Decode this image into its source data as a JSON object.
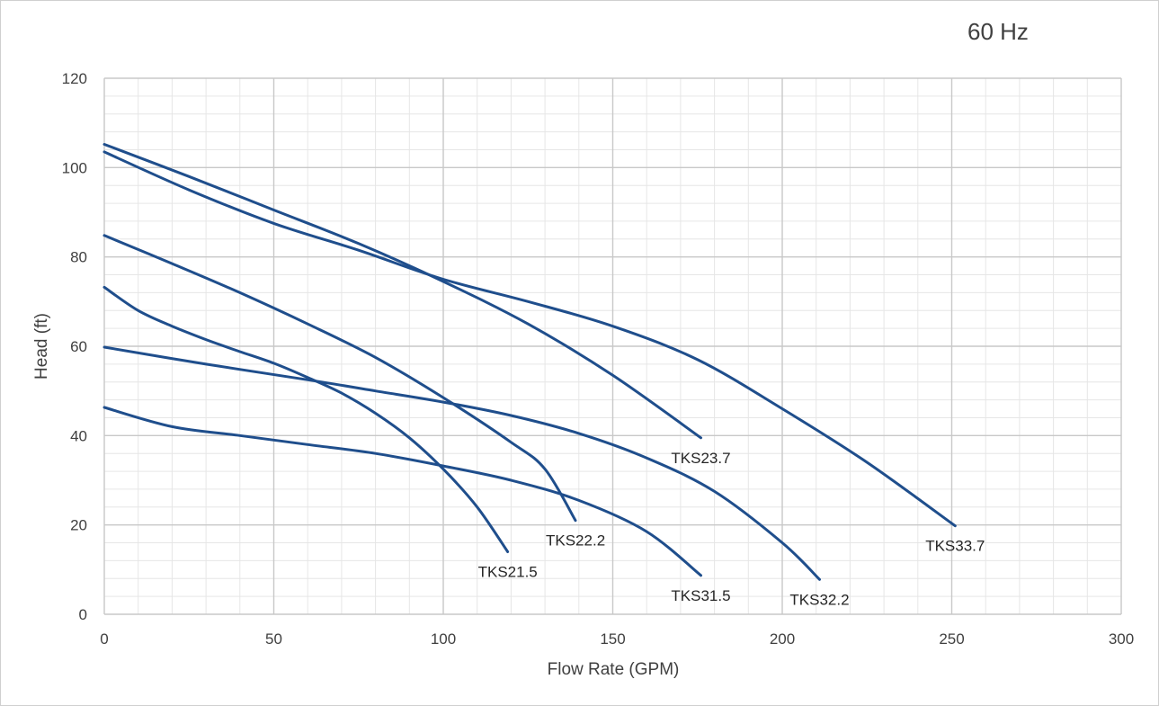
{
  "chart_data": {
    "type": "line",
    "annotation": "60 Hz",
    "xlabel": "Flow Rate (GPM)",
    "ylabel": "Head (ft)",
    "xlim": [
      0,
      300
    ],
    "ylim": [
      0,
      120
    ],
    "x_ticks": [
      0,
      50,
      100,
      150,
      200,
      250,
      300
    ],
    "y_ticks": [
      0,
      20,
      40,
      60,
      80,
      100,
      120
    ],
    "x_minor_step": 10,
    "y_minor_step": 4,
    "grid": true,
    "line_color": "#1f4e8c",
    "series": [
      {
        "name": "TKS21.5",
        "points": [
          [
            0,
            73.2
          ],
          [
            10,
            68
          ],
          [
            20,
            64.5
          ],
          [
            30,
            61.5
          ],
          [
            40,
            58.8
          ],
          [
            50,
            56.2
          ],
          [
            60,
            53
          ],
          [
            70,
            49.5
          ],
          [
            80,
            45
          ],
          [
            90,
            39.5
          ],
          [
            100,
            32.5
          ],
          [
            110,
            24
          ],
          [
            119,
            14
          ]
        ]
      },
      {
        "name": "TKS22.2",
        "points": [
          [
            0,
            84.8
          ],
          [
            20,
            78.5
          ],
          [
            40,
            72
          ],
          [
            60,
            65
          ],
          [
            80,
            57.5
          ],
          [
            100,
            48.5
          ],
          [
            120,
            38.5
          ],
          [
            130,
            32.5
          ],
          [
            139,
            21
          ]
        ]
      },
      {
        "name": "TKS23.7",
        "points": [
          [
            0,
            105.2
          ],
          [
            25,
            98
          ],
          [
            50,
            90.5
          ],
          [
            75,
            83
          ],
          [
            100,
            74.5
          ],
          [
            125,
            65
          ],
          [
            150,
            53.5
          ],
          [
            176,
            39.5
          ]
        ]
      },
      {
        "name": "TKS31.5",
        "points": [
          [
            0,
            46.3
          ],
          [
            20,
            42
          ],
          [
            40,
            40
          ],
          [
            60,
            38
          ],
          [
            80,
            36
          ],
          [
            100,
            33.2
          ],
          [
            120,
            30
          ],
          [
            140,
            25.5
          ],
          [
            160,
            18.5
          ],
          [
            176,
            8.7
          ]
        ]
      },
      {
        "name": "TKS32.2",
        "points": [
          [
            0,
            59.8
          ],
          [
            30,
            56
          ],
          [
            60,
            52.5
          ],
          [
            80,
            50
          ],
          [
            100,
            47.5
          ],
          [
            120,
            44.5
          ],
          [
            140,
            40.5
          ],
          [
            160,
            35
          ],
          [
            180,
            27.5
          ],
          [
            200,
            16
          ],
          [
            211,
            7.8
          ]
        ]
      },
      {
        "name": "TKS33.7",
        "points": [
          [
            0,
            103.5
          ],
          [
            25,
            95
          ],
          [
            50,
            87.5
          ],
          [
            75,
            81.5
          ],
          [
            100,
            75
          ],
          [
            125,
            70
          ],
          [
            150,
            64.5
          ],
          [
            175,
            57
          ],
          [
            200,
            46
          ],
          [
            225,
            34
          ],
          [
            251,
            19.8
          ]
        ]
      }
    ]
  }
}
